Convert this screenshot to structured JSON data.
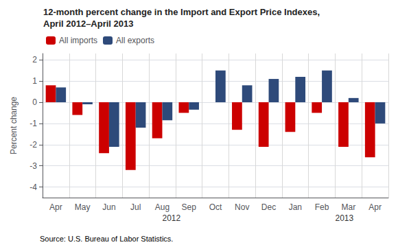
{
  "chart_data": {
    "type": "bar",
    "title": "12-month percent change in the Import and Export Price Indexes,",
    "subtitle": "April 2012–April 2013",
    "categories": [
      "Apr",
      "May",
      "Jun",
      "Jul",
      "Aug",
      "Sep",
      "Oct",
      "Nov",
      "Dec",
      "Jan",
      "Feb",
      "Mar",
      "Apr"
    ],
    "series": [
      {
        "name": "All imports",
        "color": "#CC0000",
        "values": [
          0.8,
          -0.6,
          -2.4,
          -3.2,
          -1.7,
          -0.5,
          0.0,
          -1.3,
          -2.1,
          -1.4,
          -0.5,
          -2.1,
          -2.6
        ]
      },
      {
        "name": "All exports",
        "color": "#2E4A7A",
        "values": [
          0.7,
          -0.1,
          -2.1,
          -1.2,
          -0.85,
          -0.35,
          1.5,
          0.8,
          1.1,
          1.2,
          1.5,
          0.2,
          -1.0
        ]
      }
    ],
    "ylabel": "Percent change",
    "ylim": [
      -4.5,
      2.3
    ],
    "yticks": [
      -4,
      -3,
      -2,
      -1,
      0,
      1,
      2
    ],
    "grid": true,
    "legend": "upper left",
    "annotations": [
      {
        "text": "2012",
        "x": 4.0
      },
      {
        "text": "2013",
        "x": 10.5
      }
    ],
    "source": "Source: U.S. Bureau of Labor Statistics."
  }
}
